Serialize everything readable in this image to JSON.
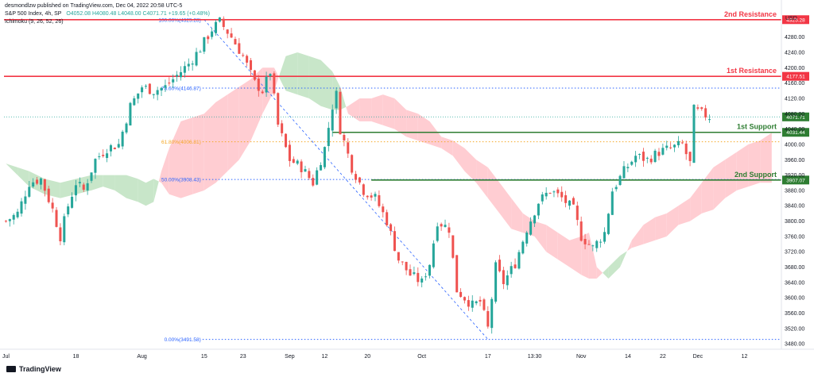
{
  "header": {
    "published": "desmondlzw published on TradingView.com, Dec 04, 2022 20:58 UTC-5",
    "symbol": "S&P 500 Index, 4h, SP",
    "ohlc": "O4052.08 H4080.48 L4048.00 C4071.71 +19.65 (+0.48%)",
    "indicator": "Ichimoku (9, 26, 52, 26)"
  },
  "brand": "TradingView",
  "colors": {
    "up": "#26a69a",
    "down": "#ef5350",
    "resistance": "#f23645",
    "support": "#2e7d32",
    "fib": "#2962ff",
    "fib618": "#f5a623",
    "cloud_bull": "#c8e6c9",
    "cloud_bear": "#ffcdd2",
    "price_line": "#26a69a"
  },
  "chart_data": {
    "type": "candlestick",
    "currency": "USD",
    "ylim": [
      3470,
      4360
    ],
    "y_ticks": [
      3480,
      3520,
      3560,
      3600,
      3640,
      3680,
      3720,
      3760,
      3800,
      3840,
      3880,
      3920,
      3960,
      4000,
      4040,
      4080,
      4120,
      4160,
      4200,
      4240,
      4280
    ],
    "x_labels": [
      "Jul",
      "18",
      "Aug",
      "15",
      "23",
      "Sep",
      "12",
      "20",
      "Oct",
      "17",
      "13:30",
      "Nov",
      "14",
      "22",
      "Dec",
      "12"
    ],
    "bars_total": 200,
    "x_label_bars": [
      0,
      18,
      35,
      51,
      61,
      73,
      82,
      93,
      107,
      124,
      136,
      148,
      160,
      169,
      178,
      190
    ],
    "levels": [
      {
        "label": "2nd Resistance",
        "value": 4325.28,
        "value_label": "4325.28",
        "kind": "resistance"
      },
      {
        "label": "1st Resistance",
        "value": 4177.51,
        "value_label": "4177.51",
        "kind": "resistance"
      },
      {
        "label": "1st Support",
        "value": 4031.44,
        "value_label": "4031.44",
        "kind": "support"
      },
      {
        "label": "2nd Support",
        "value": 3907.07,
        "value_label": "3907.07",
        "kind": "support"
      }
    ],
    "fib_levels": [
      {
        "label": "100.00%(4325.28)",
        "value": 4325.28
      },
      {
        "label": "78.60%(4146.87)",
        "value": 4146.87
      },
      {
        "label": "61.80%(4006.81)",
        "value": 4006.81
      },
      {
        "label": "50.00%(3908.43)",
        "value": 3908.43
      },
      {
        "label": "0.00%(3491.58)",
        "value": 3491.58
      }
    ],
    "last_price": {
      "value": 4071.71,
      "label": "4071.71"
    },
    "price_path": [
      [
        0,
        3800
      ],
      [
        3,
        3820
      ],
      [
        6,
        3900
      ],
      [
        9,
        3910
      ],
      [
        12,
        3830
      ],
      [
        14,
        3760
      ],
      [
        16,
        3840
      ],
      [
        18,
        3900
      ],
      [
        20,
        3880
      ],
      [
        23,
        3960
      ],
      [
        26,
        3990
      ],
      [
        29,
        4000
      ],
      [
        32,
        4100
      ],
      [
        35,
        4150
      ],
      [
        38,
        4140
      ],
      [
        41,
        4150
      ],
      [
        44,
        4180
      ],
      [
        47,
        4210
      ],
      [
        50,
        4250
      ],
      [
        53,
        4300
      ],
      [
        55,
        4320
      ],
      [
        58,
        4280
      ],
      [
        61,
        4230
      ],
      [
        64,
        4160
      ],
      [
        66,
        4140
      ],
      [
        68,
        4190
      ],
      [
        70,
        4050
      ],
      [
        73,
        3960
      ],
      [
        76,
        3940
      ],
      [
        79,
        3900
      ],
      [
        82,
        3990
      ],
      [
        84,
        4100
      ],
      [
        85,
        4130
      ],
      [
        86,
        4040
      ],
      [
        89,
        3940
      ],
      [
        92,
        3880
      ],
      [
        95,
        3860
      ],
      [
        98,
        3800
      ],
      [
        101,
        3700
      ],
      [
        104,
        3660
      ],
      [
        107,
        3640
      ],
      [
        109,
        3690
      ],
      [
        111,
        3800
      ],
      [
        114,
        3780
      ],
      [
        116,
        3620
      ],
      [
        118,
        3600
      ],
      [
        120,
        3580
      ],
      [
        122,
        3590
      ],
      [
        124,
        3520
      ],
      [
        126,
        3680
      ],
      [
        128,
        3640
      ],
      [
        131,
        3690
      ],
      [
        134,
        3780
      ],
      [
        137,
        3850
      ],
      [
        140,
        3880
      ],
      [
        143,
        3860
      ],
      [
        146,
        3830
      ],
      [
        148,
        3760
      ],
      [
        151,
        3730
      ],
      [
        154,
        3770
      ],
      [
        156,
        3880
      ],
      [
        159,
        3930
      ],
      [
        162,
        3970
      ],
      [
        165,
        3960
      ],
      [
        168,
        3980
      ],
      [
        171,
        3990
      ],
      [
        174,
        4000
      ],
      [
        176,
        3950
      ],
      [
        177,
        4090
      ],
      [
        179,
        4080
      ],
      [
        181,
        4072
      ]
    ],
    "fib_trendline": [
      [
        51,
        4325.28
      ],
      [
        124,
        3491.58
      ]
    ],
    "cloud": [
      [
        0,
        3950,
        3950
      ],
      [
        3,
        3940,
        3920
      ],
      [
        6,
        3930,
        3890
      ],
      [
        10,
        3910,
        3870
      ],
      [
        14,
        3900,
        3860
      ],
      [
        18,
        3910,
        3870
      ],
      [
        22,
        3920,
        3880
      ],
      [
        25,
        3920,
        3890
      ],
      [
        28,
        3920,
        3880
      ],
      [
        31,
        3920,
        3860
      ],
      [
        34,
        3910,
        3850
      ],
      [
        36,
        3900,
        3840
      ],
      [
        38,
        3910,
        3850
      ],
      [
        40,
        3900,
        3930
      ],
      [
        42,
        3870,
        3990
      ],
      [
        45,
        3860,
        4060
      ],
      [
        48,
        3870,
        4070
      ],
      [
        51,
        3880,
        4080
      ],
      [
        54,
        3900,
        4110
      ],
      [
        57,
        3930,
        4130
      ],
      [
        60,
        3960,
        4150
      ],
      [
        63,
        4010,
        4170
      ],
      [
        66,
        4080,
        4200
      ],
      [
        69,
        4140,
        4200
      ],
      [
        72,
        4230,
        4140
      ],
      [
        75,
        4240,
        4130
      ],
      [
        78,
        4230,
        4120
      ],
      [
        81,
        4220,
        4100
      ],
      [
        84,
        4190,
        4090
      ],
      [
        86,
        4150,
        4090
      ],
      [
        88,
        4080,
        4100
      ],
      [
        91,
        4060,
        4120
      ],
      [
        94,
        4060,
        4120
      ],
      [
        97,
        4050,
        4130
      ],
      [
        100,
        4040,
        4120
      ],
      [
        103,
        4020,
        4090
      ],
      [
        106,
        4010,
        4080
      ],
      [
        109,
        4000,
        4060
      ],
      [
        112,
        3990,
        4020
      ],
      [
        115,
        3970,
        4010
      ],
      [
        118,
        3930,
        3990
      ],
      [
        121,
        3900,
        3960
      ],
      [
        124,
        3860,
        3940
      ],
      [
        127,
        3820,
        3900
      ],
      [
        130,
        3780,
        3860
      ],
      [
        133,
        3770,
        3820
      ],
      [
        136,
        3760,
        3800
      ],
      [
        139,
        3720,
        3790
      ],
      [
        142,
        3700,
        3770
      ],
      [
        145,
        3680,
        3750
      ],
      [
        148,
        3660,
        3760
      ],
      [
        150,
        3650,
        3770
      ],
      [
        152,
        3650,
        3680
      ],
      [
        155,
        3680,
        3650
      ],
      [
        158,
        3710,
        3680
      ],
      [
        161,
        3730,
        3750
      ],
      [
        164,
        3740,
        3790
      ],
      [
        167,
        3750,
        3810
      ],
      [
        170,
        3760,
        3820
      ],
      [
        173,
        3790,
        3840
      ],
      [
        176,
        3800,
        3860
      ],
      [
        179,
        3820,
        3900
      ],
      [
        182,
        3830,
        3940
      ],
      [
        185,
        3860,
        3960
      ],
      [
        188,
        3880,
        3980
      ],
      [
        191,
        3890,
        4000
      ],
      [
        194,
        3900,
        4010
      ],
      [
        197,
        3900,
        4030
      ]
    ]
  }
}
